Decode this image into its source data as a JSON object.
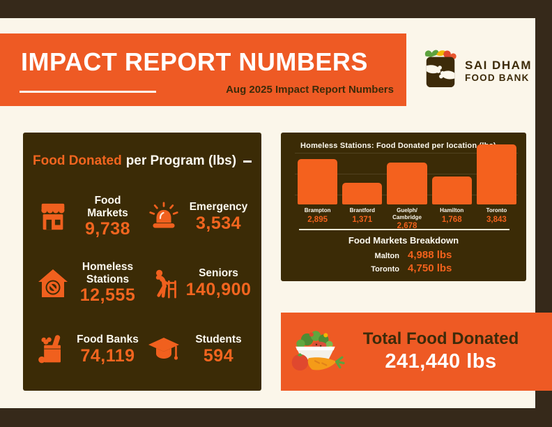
{
  "header": {
    "title": "IMPACT REPORT NUMBERS",
    "subtitle": "Aug 2025 Impact Report Numbers"
  },
  "logo": {
    "org_line1": "SAI DHAM",
    "org_line2": "FOOD BANK"
  },
  "programs": {
    "title_highlight": "Food Donated",
    "title_rest": "per Program (lbs)",
    "items": [
      {
        "label": "Food Markets",
        "value": "9,738",
        "icon": "storefront-icon"
      },
      {
        "label": "Emergency",
        "value": "3,534",
        "icon": "siren-icon"
      },
      {
        "label": "Homeless Stations",
        "value": "12,555",
        "icon": "house-no-entry-icon"
      },
      {
        "label": "Seniors",
        "value": "140,900",
        "icon": "senior-walker-icon"
      },
      {
        "label": "Food Banks",
        "value": "74,119",
        "icon": "grocery-bag-icon"
      },
      {
        "label": "Students",
        "value": "594",
        "icon": "graduation-cap-icon"
      }
    ]
  },
  "chart_data": {
    "type": "bar",
    "title": "Homeless Stations: Food Donated per location (lbs)",
    "categories": [
      "Brampton",
      "Brantford",
      "Guelph/\nCambridge",
      "Hamilton",
      "Toronto"
    ],
    "values": [
      2895,
      1371,
      2678,
      1768,
      3843
    ],
    "value_labels": [
      "2,895",
      "1,371",
      "2,678",
      "1,768",
      "3,843"
    ],
    "xlabel": "",
    "ylabel": "",
    "ylim": [
      0,
      3900
    ],
    "grid": true,
    "legend": false,
    "bar_color": "#f4611e"
  },
  "breakdown": {
    "title": "Food Markets Breakdown",
    "rows": [
      {
        "label": "Malton",
        "value": "4,988 lbs"
      },
      {
        "label": "Toronto",
        "value": "4,750 lbs"
      }
    ]
  },
  "total": {
    "label": "Total Food Donated",
    "value": "241,440 lbs"
  },
  "colors": {
    "orange": "#ee5a24",
    "bar_orange": "#f4611e",
    "panel_brown": "#3b2b06",
    "frame_brown": "#36291a",
    "cream": "#fbf6ea",
    "dark_text": "#3d2b0a",
    "value_orange": "#f2651f"
  }
}
